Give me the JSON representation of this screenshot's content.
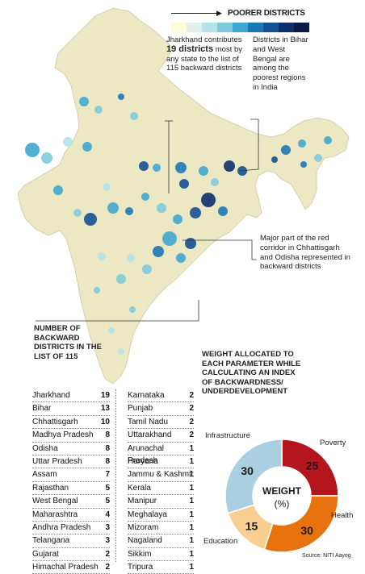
{
  "legend": {
    "title": "POORER DISTRICTS",
    "ramp": [
      "#fffad8",
      "#dff1ea",
      "#b5e2e8",
      "#7fcbdd",
      "#3fa7cf",
      "#1b78b3",
      "#145193",
      "#0e2f6e",
      "#081b46"
    ]
  },
  "callouts": {
    "jharkhand": {
      "pre": "Jharkhand contributes",
      "bold": "19 districts",
      "post": "most by any state to the list of 115 backward districts"
    },
    "bihar_wb": "Districts in Bihar and West Bengal are among the poorest regions in India",
    "red_corridor": "Major part of the red corridor in Chhattisgarh and Odisha represented in backward districts"
  },
  "table": {
    "heading": "NUMBER OF BACKWARD DISTRICTS IN THE LIST OF 115",
    "left": [
      {
        "state": "Jharkhand",
        "count": "19"
      },
      {
        "state": "Bihar",
        "count": "13"
      },
      {
        "state": "Chhattisgarh",
        "count": "10"
      },
      {
        "state": "Madhya Pradesh",
        "count": "8"
      },
      {
        "state": "Odisha",
        "count": "8"
      },
      {
        "state": "Uttar Pradesh",
        "count": "8"
      },
      {
        "state": "Assam",
        "count": "7"
      },
      {
        "state": "Rajasthan",
        "count": "5"
      },
      {
        "state": "West Bengal",
        "count": "5"
      },
      {
        "state": "Maharashtra",
        "count": "4"
      },
      {
        "state": "Andhra Pradesh",
        "count": "3"
      },
      {
        "state": "Telangana",
        "count": "3"
      },
      {
        "state": "Gujarat",
        "count": "2"
      },
      {
        "state": "Himachal Pradesh",
        "count": "2"
      }
    ],
    "right": [
      {
        "state": "Karnataka",
        "count": "2"
      },
      {
        "state": "Punjab",
        "count": "2"
      },
      {
        "state": "Tamil Nadu",
        "count": "2"
      },
      {
        "state": "Uttarakhand",
        "count": "2"
      },
      {
        "state": "Arunachal Pradesh",
        "count": "1"
      },
      {
        "state": "Haryana",
        "count": "1"
      },
      {
        "state": "Jammu & Kashmir",
        "count": "1"
      },
      {
        "state": "Kerala",
        "count": "1"
      },
      {
        "state": "Manipur",
        "count": "1"
      },
      {
        "state": "Meghalaya",
        "count": "1"
      },
      {
        "state": "Mizoram",
        "count": "1"
      },
      {
        "state": "Nagaland",
        "count": "1"
      },
      {
        "state": "Sikkim",
        "count": "1"
      },
      {
        "state": "Tripura",
        "count": "1"
      }
    ]
  },
  "weights": {
    "heading": "WEIGHT ALLOCATED TO EACH PARAMETER WHILE CALCULATING AN INDEX OF BACKWARDNESS/ UNDERDEVELOPMENT",
    "center": "WEIGHT",
    "center_unit": "(%)",
    "segments": [
      {
        "label": "Poverty",
        "value": 25,
        "color": "#b5151d"
      },
      {
        "label": "Health",
        "value": 30,
        "color": "#e8720e"
      },
      {
        "label": "Education",
        "value": 15,
        "color": "#f8cf91"
      },
      {
        "label": "Infrastructure",
        "value": 30,
        "color": "#a9cfe0"
      }
    ]
  },
  "source": "Source: NITI Aayog"
}
